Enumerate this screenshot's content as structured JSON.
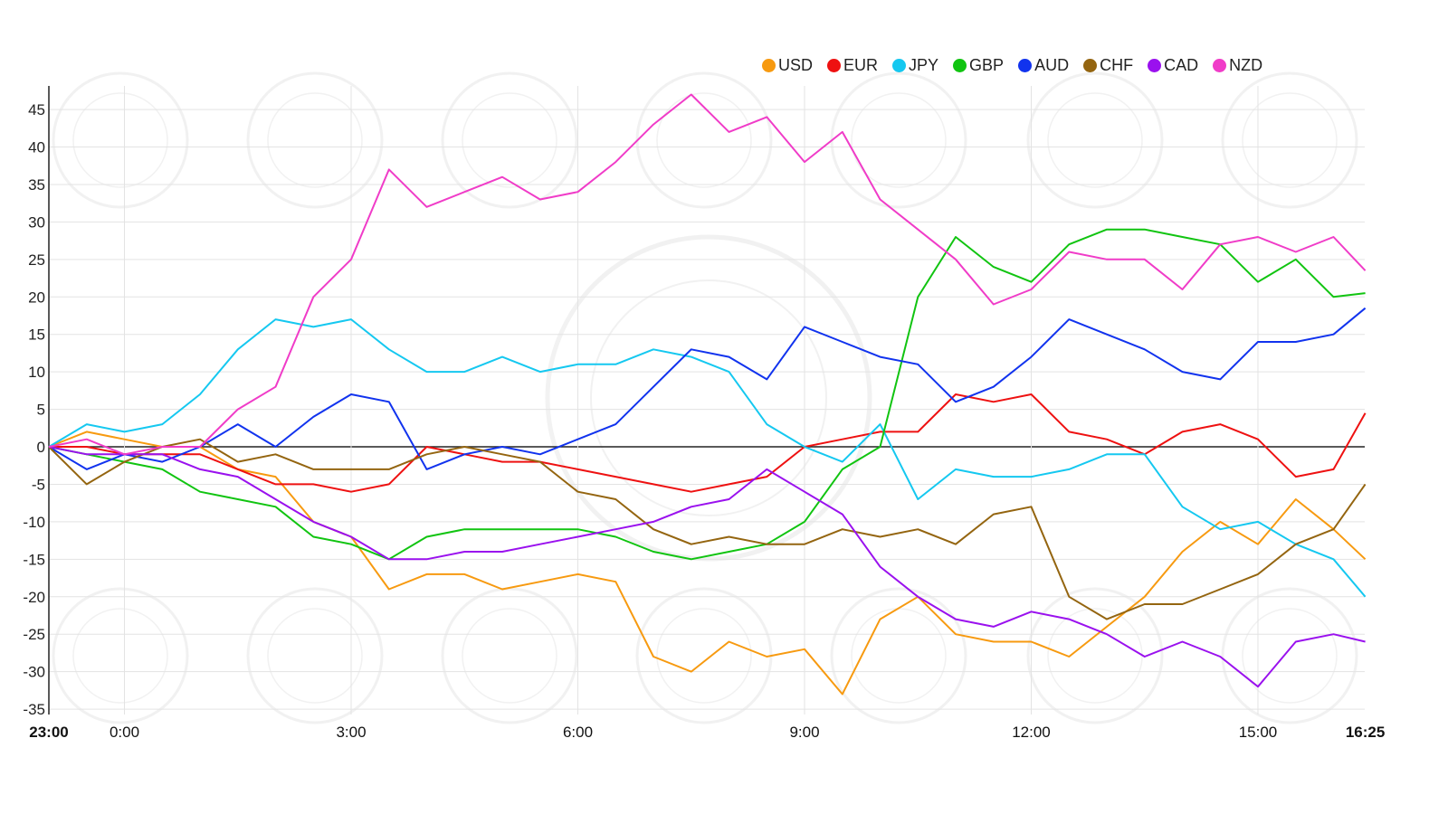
{
  "chart_data": {
    "type": "line",
    "title": "",
    "xlabel": "",
    "ylabel": "",
    "x_unit": "hours since 23:00",
    "ylim": [
      -35,
      48
    ],
    "yticks": [
      45,
      40,
      35,
      30,
      25,
      20,
      15,
      10,
      5,
      0,
      -5,
      -10,
      -15,
      -20,
      -25,
      -30,
      -35
    ],
    "xticks": [
      {
        "value": 0,
        "label": "23:00",
        "bold": true
      },
      {
        "value": 1,
        "label": "0:00",
        "bold": false
      },
      {
        "value": 4,
        "label": "3:00",
        "bold": false
      },
      {
        "value": 7,
        "label": "6:00",
        "bold": false
      },
      {
        "value": 10,
        "label": "9:00",
        "bold": false
      },
      {
        "value": 13,
        "label": "12:00",
        "bold": false
      },
      {
        "value": 16,
        "label": "15:00",
        "bold": false
      },
      {
        "value": 17.42,
        "label": "16:25",
        "bold": true
      }
    ],
    "grid": true,
    "legend_position": "top-right",
    "x": [
      0,
      0.5,
      1,
      1.5,
      2,
      2.5,
      3,
      3.5,
      4,
      4.5,
      5,
      5.5,
      6,
      6.5,
      7,
      7.5,
      8,
      8.5,
      9,
      9.5,
      10,
      10.5,
      11,
      11.5,
      12,
      12.5,
      13,
      13.5,
      14,
      14.5,
      15,
      15.5,
      16,
      16.5,
      17,
      17.42
    ],
    "series": [
      {
        "name": "USD",
        "color": "#f79a10",
        "values": [
          0,
          2,
          1,
          0,
          0,
          -3,
          -4,
          -10,
          -12,
          -19,
          -17,
          -17,
          -19,
          -18,
          -17,
          -18,
          -28,
          -30,
          -26,
          -28,
          -27,
          -33,
          -23,
          -20,
          -25,
          -26,
          -26,
          -28,
          -24,
          -20,
          -14,
          -10,
          -13,
          -7,
          -11,
          -15
        ]
      },
      {
        "name": "EUR",
        "color": "#ee1111",
        "values": [
          0,
          0,
          -1,
          -1,
          -1,
          -3,
          -5,
          -5,
          -6,
          -5,
          0,
          -1,
          -2,
          -2,
          -3,
          -4,
          -5,
          -6,
          -5,
          -4,
          0,
          1,
          2,
          2,
          7,
          6,
          7,
          2,
          1,
          -1,
          2,
          3,
          1,
          -4,
          -3,
          4.5
        ]
      },
      {
        "name": "JPY",
        "color": "#15c8f0",
        "values": [
          0,
          3,
          2,
          3,
          7,
          13,
          17,
          16,
          17,
          13,
          10,
          10,
          12,
          10,
          11,
          11,
          13,
          12,
          10,
          3,
          0,
          -2,
          3,
          -7,
          -3,
          -4,
          -4,
          -3,
          -1,
          -1,
          -8,
          -11,
          -10,
          -13,
          -15,
          -20
        ]
      },
      {
        "name": "GBP",
        "color": "#11c411",
        "values": [
          0,
          -1,
          -2,
          -3,
          -6,
          -7,
          -8,
          -12,
          -13,
          -15,
          -12,
          -11,
          -11,
          -11,
          -11,
          -12,
          -14,
          -15,
          -14,
          -13,
          -10,
          -3,
          0,
          20,
          28,
          24,
          22,
          27,
          29,
          29,
          28,
          27,
          22,
          25,
          20,
          20.5
        ]
      },
      {
        "name": "AUD",
        "color": "#1133ee",
        "values": [
          0,
          -3,
          -1,
          -2,
          0,
          3,
          0,
          4,
          7,
          6,
          -3,
          -1,
          0,
          -1,
          1,
          3,
          8,
          13,
          12,
          9,
          16,
          14,
          12,
          11,
          6,
          8,
          12,
          17,
          15,
          13,
          10,
          9,
          14,
          14,
          15,
          18.5
        ]
      },
      {
        "name": "CHF",
        "color": "#946510",
        "values": [
          0,
          -5,
          -2,
          0,
          1,
          -2,
          -1,
          -3,
          -3,
          -3,
          -1,
          0,
          -1,
          -2,
          -6,
          -7,
          -11,
          -13,
          -12,
          -13,
          -13,
          -11,
          -12,
          -11,
          -13,
          -9,
          -8,
          -20,
          -23,
          -21,
          -21,
          -19,
          -17,
          -13,
          -11,
          -5
        ]
      },
      {
        "name": "CAD",
        "color": "#9a11ee",
        "values": [
          0,
          -1,
          -1,
          -1,
          -3,
          -4,
          -7,
          -10,
          -12,
          -15,
          -15,
          -14,
          -14,
          -13,
          -12,
          -11,
          -10,
          -8,
          -7,
          -3,
          -6,
          -9,
          -16,
          -20,
          -23,
          -24,
          -22,
          -23,
          -25,
          -28,
          -26,
          -28,
          -32,
          -26,
          -25,
          -26
        ]
      },
      {
        "name": "NZD",
        "color": "#f03cc8",
        "values": [
          0,
          1,
          -1,
          0,
          0,
          5,
          8,
          20,
          25,
          37,
          32,
          34,
          36,
          33,
          34,
          38,
          43,
          47,
          42,
          44,
          38,
          42,
          33,
          29,
          25,
          19,
          21,
          26,
          25,
          25,
          21,
          27,
          28,
          26,
          28,
          23.5
        ]
      }
    ]
  }
}
